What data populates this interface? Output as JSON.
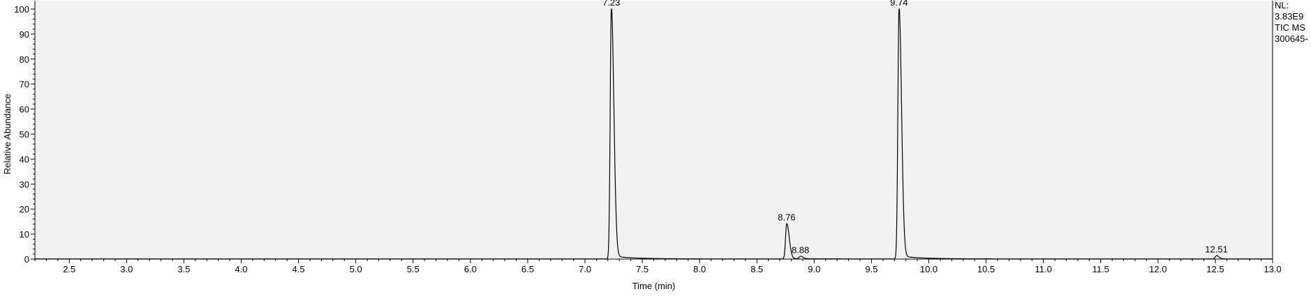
{
  "chart_data": {
    "type": "line",
    "xlabel": "Time (min)",
    "ylabel": "Relative Abundance",
    "xlim": [
      2.2,
      13.0
    ],
    "ylim": [
      0,
      100
    ],
    "x_ticks": [
      2.5,
      3.0,
      3.5,
      4.0,
      4.5,
      5.0,
      5.5,
      6.0,
      6.5,
      7.0,
      7.5,
      8.0,
      8.5,
      9.0,
      9.5,
      10.0,
      10.5,
      11.0,
      11.5,
      12.0,
      12.5,
      13.0
    ],
    "y_ticks": [
      0,
      10,
      20,
      30,
      40,
      50,
      60,
      70,
      80,
      90,
      100
    ],
    "peaks": [
      {
        "rt": 7.23,
        "label": "7.23",
        "height": 100
      },
      {
        "rt": 8.76,
        "label": "8.76",
        "height": 14
      },
      {
        "rt": 8.88,
        "label": "8.88",
        "height": 1
      },
      {
        "rt": 9.74,
        "label": "9.74",
        "height": 100
      },
      {
        "rt": 12.51,
        "label": "12.51",
        "height": 1.3
      }
    ],
    "annotation": [
      "NL:",
      "3.83E9",
      "TIC  MS",
      "300645-"
    ],
    "colors": {
      "plot_background": "#f2f2f2",
      "trace": "#000000"
    }
  }
}
